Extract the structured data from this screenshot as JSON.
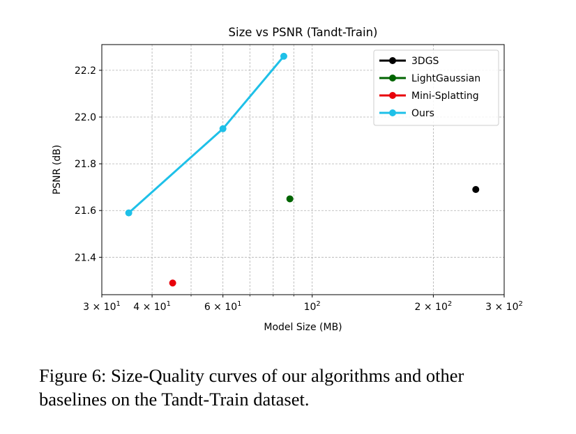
{
  "chart_data": {
    "type": "scatter",
    "title": "Size vs PSNR (Tandt-Train)",
    "xlabel": "Model Size (MB)",
    "ylabel": "PSNR (dB)",
    "xscale": "log",
    "xlim": [
      30,
      300
    ],
    "ylim": [
      21.24,
      22.31
    ],
    "grid": true,
    "legend_position": "top-right",
    "x_ticks": [
      {
        "value": 30,
        "base": "3 × 10",
        "exp": "1"
      },
      {
        "value": 40,
        "base": "4 × 10",
        "exp": "1"
      },
      {
        "value": 60,
        "base": "6 × 10",
        "exp": "1"
      },
      {
        "value": 100,
        "base": "10",
        "exp": "2"
      },
      {
        "value": 200,
        "base": "2 × 10",
        "exp": "2"
      },
      {
        "value": 300,
        "base": "3 × 10",
        "exp": "2"
      }
    ],
    "x_minor_grid": [
      50,
      70,
      80,
      90
    ],
    "y_ticks": [
      {
        "value": 21.4,
        "label": "21.4"
      },
      {
        "value": 21.6,
        "label": "21.6"
      },
      {
        "value": 21.8,
        "label": "21.8"
      },
      {
        "value": 22.0,
        "label": "22.0"
      },
      {
        "value": 22.2,
        "label": "22.2"
      }
    ],
    "series": [
      {
        "name": "3DGS",
        "color": "#000000",
        "points": [
          [
            255,
            21.69
          ]
        ]
      },
      {
        "name": "LightGaussian",
        "color": "#006400",
        "points": [
          [
            88,
            21.65
          ]
        ]
      },
      {
        "name": "Mini-Splatting",
        "color": "#e8000b",
        "points": [
          [
            45,
            21.29
          ]
        ]
      },
      {
        "name": "Ours",
        "color": "#1ec0e8",
        "points": [
          [
            35,
            21.59
          ],
          [
            60,
            21.95
          ],
          [
            85,
            22.26
          ]
        ]
      }
    ]
  },
  "caption": {
    "line1": "Figure 6: Size-Quality curves of our algorithms and other",
    "line2": "baselines on the Tandt-Train dataset."
  }
}
